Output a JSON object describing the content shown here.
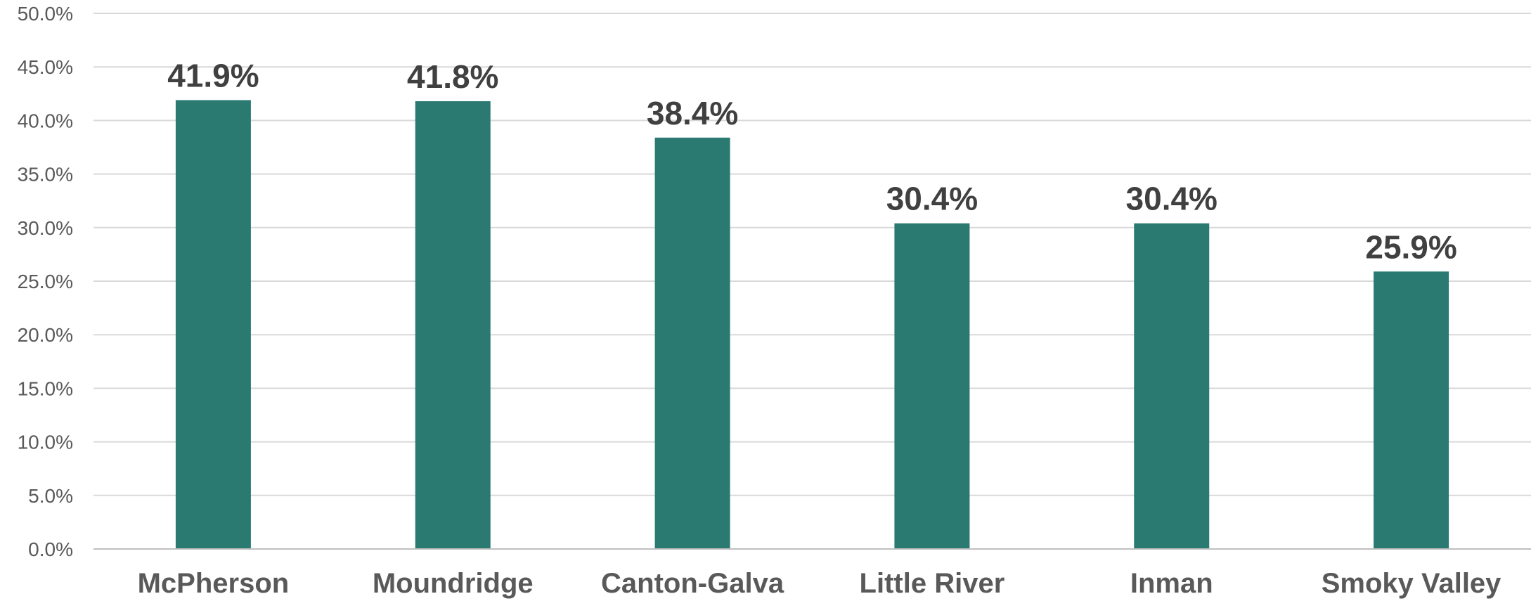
{
  "chart_data": {
    "type": "bar",
    "title": "",
    "xlabel": "",
    "ylabel": "",
    "categories": [
      "McPherson",
      "Moundridge",
      "Canton-Galva",
      "Little River",
      "Inman",
      "Smoky Valley"
    ],
    "values": [
      41.9,
      41.8,
      38.4,
      30.4,
      30.4,
      25.9
    ],
    "data_labels": [
      "41.9%",
      "41.8%",
      "38.4%",
      "30.4%",
      "30.4%",
      "25.9%"
    ],
    "ylim": [
      0,
      50
    ],
    "y_ticks": [
      0,
      5,
      10,
      15,
      20,
      25,
      30,
      35,
      40,
      45,
      50
    ],
    "y_tick_labels": [
      "0.0%",
      "5.0%",
      "10.0%",
      "15.0%",
      "20.0%",
      "25.0%",
      "30.0%",
      "35.0%",
      "40.0%",
      "45.0%",
      "50.0%"
    ],
    "grid": true,
    "legend": "none",
    "bar_color": "#2A7A72"
  }
}
